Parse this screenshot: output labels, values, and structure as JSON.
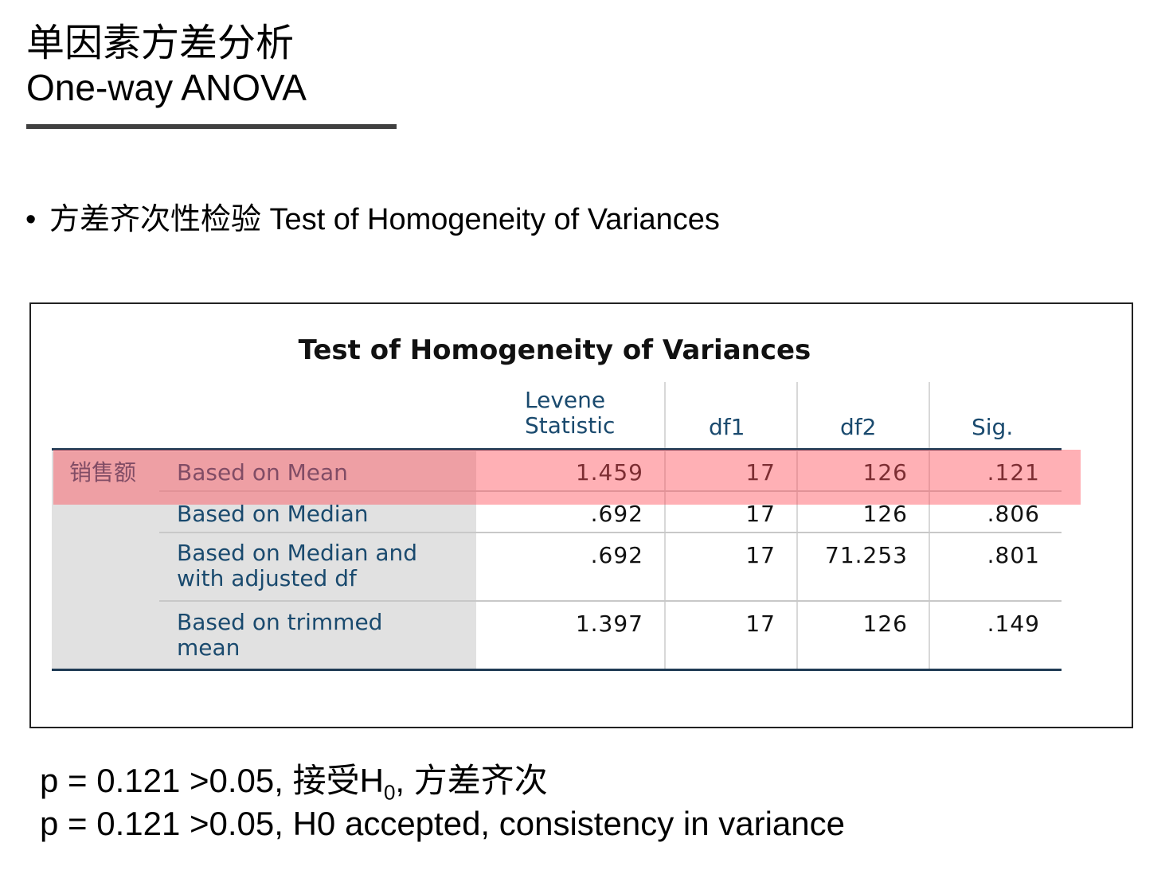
{
  "slide": {
    "title_zh": "单因素方差分析",
    "title_en": "One-way ANOVA",
    "bullet": "方差齐次性检验 Test of Homogeneity of Variances"
  },
  "table": {
    "title": "Test of Homogeneity of Variances",
    "columns": [
      "Levene Statistic",
      "df1",
      "df2",
      "Sig."
    ],
    "levene_line1": "Levene",
    "levene_line2": "Statistic",
    "group_label": "销售额",
    "rows": [
      {
        "label_line1": "Based on Mean",
        "label_line2": "",
        "levene": "1.459",
        "df1": "17",
        "df2": "126",
        "sig": ".121"
      },
      {
        "label_line1": "Based on Median",
        "label_line2": "",
        "levene": ".692",
        "df1": "17",
        "df2": "126",
        "sig": ".806"
      },
      {
        "label_line1": "Based on Median and",
        "label_line2": "with adjusted df",
        "levene": ".692",
        "df1": "17",
        "df2": "71.253",
        "sig": ".801"
      },
      {
        "label_line1": "Based on trimmed",
        "label_line2": "mean",
        "levene": "1.397",
        "df1": "17",
        "df2": "126",
        "sig": ".149"
      }
    ],
    "highlight_color": "#ff505a"
  },
  "conclusion": {
    "zh_prefix": "p = 0.121 >0.05, 接受H",
    "zh_sub": "0",
    "zh_suffix": ", 方差齐次",
    "en": "p = 0.121 >0.05, H0 accepted, consistency in variance"
  }
}
